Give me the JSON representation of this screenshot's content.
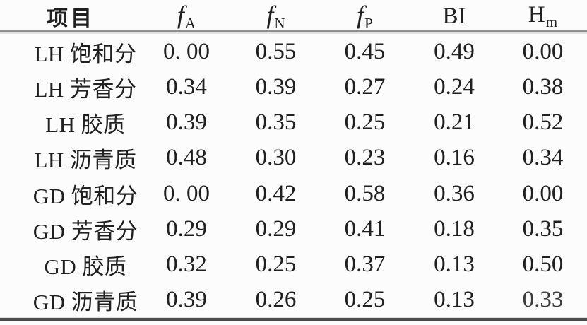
{
  "table": {
    "columns": [
      {
        "label": "项目",
        "sub": "",
        "italic": false
      },
      {
        "label": "f",
        "sub": "A",
        "italic": true
      },
      {
        "label": "f",
        "sub": "N",
        "italic": true
      },
      {
        "label": "f",
        "sub": "P",
        "italic": true
      },
      {
        "label": "BI",
        "sub": "",
        "italic": false
      },
      {
        "label": "H",
        "sub": "m",
        "italic": false
      }
    ],
    "rows": [
      {
        "label": "LH 饱和分",
        "values": [
          "0. 00",
          "0.55",
          "0.45",
          "0.49",
          "0.00"
        ]
      },
      {
        "label": "LH 芳香分",
        "values": [
          "0.34",
          "0.39",
          "0.27",
          "0.24",
          "0.38"
        ]
      },
      {
        "label": "LH 胶质",
        "values": [
          "0.39",
          "0.35",
          "0.25",
          "0.21",
          "0.52"
        ]
      },
      {
        "label": "LH 沥青质",
        "values": [
          "0.48",
          "0.30",
          "0.23",
          "0.16",
          "0.34"
        ]
      },
      {
        "label": "GD 饱和分",
        "values": [
          "0. 00",
          "0.42",
          "0.58",
          "0.36",
          "0.00"
        ]
      },
      {
        "label": "GD 芳香分",
        "values": [
          "0.29",
          "0.29",
          "0.41",
          "0.18",
          "0.35"
        ]
      },
      {
        "label": "GD 胶质",
        "values": [
          "0.32",
          "0.25",
          "0.37",
          "0.13",
          "0.50"
        ]
      },
      {
        "label": "GD 沥青质",
        "values": [
          "0.39",
          "0.26",
          "0.25",
          "0.13",
          "0.33"
        ]
      }
    ]
  },
  "colors": {
    "text": "#202020",
    "header_rule": "#8f8f8f",
    "bottom_rule": "#4a4a4a",
    "background": "#fcfcfc"
  }
}
